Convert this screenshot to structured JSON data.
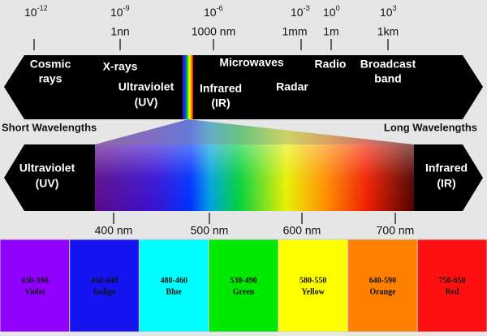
{
  "wave_scale": [
    {
      "base": "10",
      "exponent": "-12"
    },
    {
      "base": "10",
      "exponent": "-9"
    },
    {
      "base": "10",
      "exponent": "-6"
    },
    {
      "base": "10",
      "exponent": "-3"
    },
    {
      "base": "10",
      "exponent": "0"
    },
    {
      "base": "10",
      "exponent": "3"
    }
  ],
  "length_scale": [
    "1nn",
    "1000 nm",
    "1mm",
    "1m",
    "1km"
  ],
  "bands": [
    {
      "lines": [
        "Cosmic",
        "rays"
      ]
    },
    {
      "lines": [
        "X-rays"
      ]
    },
    {
      "lines": [
        "Ultraviolet",
        "(UV)"
      ]
    },
    {
      "lines": [
        "Microwaves"
      ]
    },
    {
      "lines": [
        "Infrared",
        "(IR)"
      ]
    },
    {
      "lines": [
        "Radio"
      ]
    },
    {
      "lines": [
        "Radar"
      ]
    },
    {
      "lines": [
        "Broadcast",
        "band"
      ]
    }
  ],
  "short_label": "Short Wavelengths",
  "long_label": "Long Wavelengths",
  "visible": {
    "left": [
      "Ultraviolet",
      "(UV)"
    ],
    "right": [
      "Infrared",
      "(IR)"
    ],
    "ticks": [
      "400 nm",
      "500 nm",
      "600 nm",
      "700 nm"
    ]
  },
  "colors": [
    {
      "range": "430-390",
      "name": "Violet"
    },
    {
      "range": "450-440",
      "name": "Indigo"
    },
    {
      "range": "480-460",
      "name": "Blue"
    },
    {
      "range": "530-490",
      "name": "Green"
    },
    {
      "range": "580-550",
      "name": "Yellow"
    },
    {
      "range": "640-590",
      "name": "Orange"
    },
    {
      "range": "750-650",
      "name": "Red"
    }
  ]
}
